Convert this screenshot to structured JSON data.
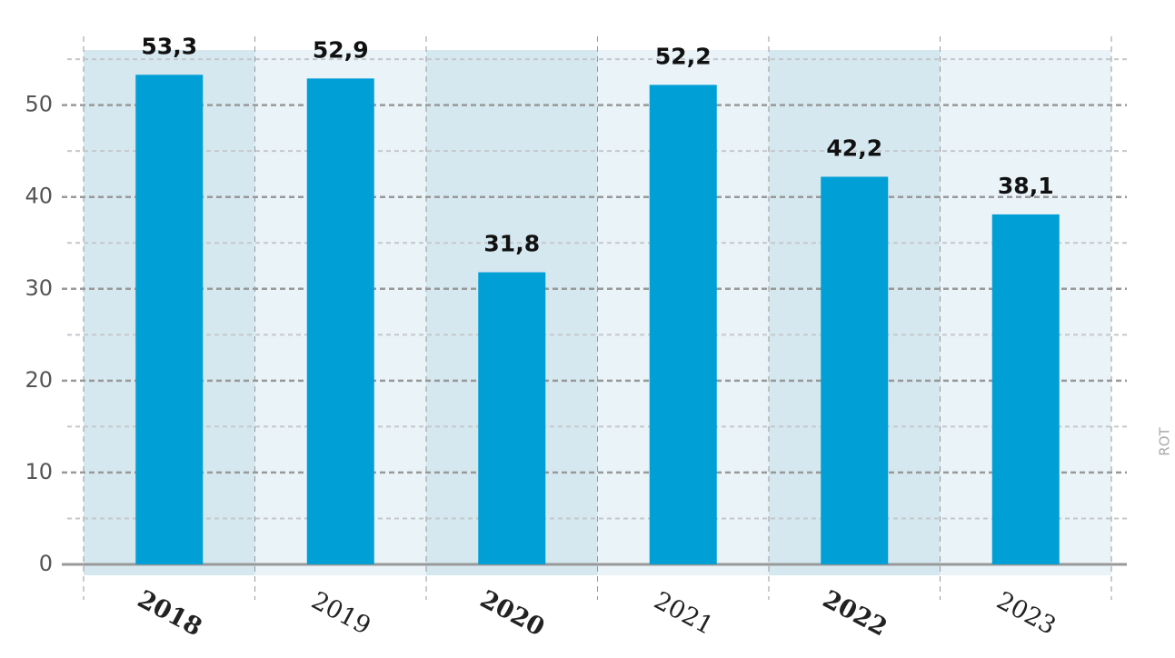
{
  "chart_data": {
    "type": "bar",
    "categories": [
      "2018",
      "2019",
      "2020",
      "2021",
      "2022",
      "2023"
    ],
    "values": [
      53.3,
      52.9,
      31.8,
      52.2,
      42.2,
      38.1
    ],
    "value_labels": [
      "53,3",
      "52,9",
      "31,8",
      "52,2",
      "42,2",
      "38,1"
    ],
    "color": "#009fd6",
    "band_colors": [
      "#d5e8ef",
      "#e9f3f8"
    ],
    "ylim": [
      0,
      56
    ],
    "yticks": [
      0,
      10,
      20,
      30,
      40,
      50
    ],
    "minor_yticks": [
      5,
      15,
      25,
      35,
      45,
      55
    ],
    "grid": true,
    "source": "ROT"
  }
}
